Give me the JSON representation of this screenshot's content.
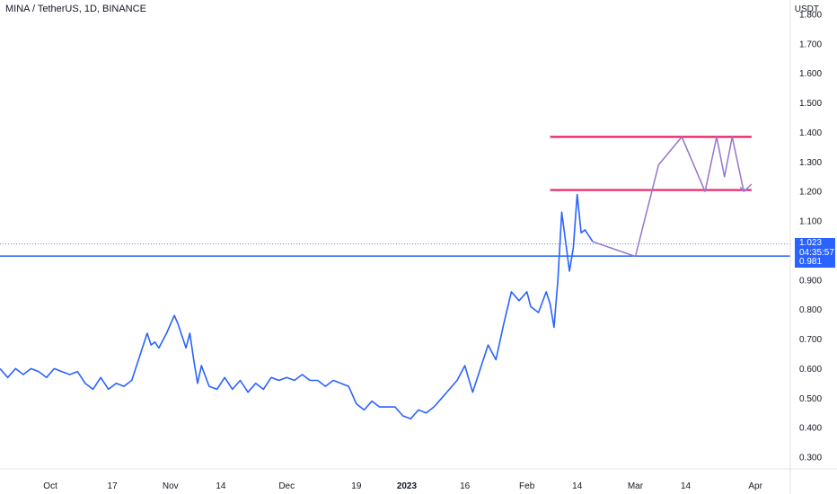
{
  "header": {
    "symbol_title": "MINA / TetherUS, 1D, BINANCE",
    "currency": "USDT"
  },
  "badges": {
    "last_price": "1.023",
    "countdown": "04:35:57",
    "level_price": "0.981"
  },
  "colors": {
    "price_line": "#2962ff",
    "level_line": "#2962ff",
    "range_lines": "#e91e63",
    "projection": "#9575cd",
    "badge_bg": "#2962ff"
  },
  "chart_data": {
    "type": "line",
    "ylim": [
      0.25,
      1.8
    ],
    "y_ticks": [
      0.3,
      0.4,
      0.5,
      0.6,
      0.7,
      0.8,
      0.9,
      1.0,
      1.1,
      1.2,
      1.3,
      1.4,
      1.5,
      1.6,
      1.7,
      1.8
    ],
    "y_tick_labels": [
      "0.300",
      "0.400",
      "0.500",
      "0.600",
      "0.700",
      "0.800",
      "0.900",
      "",
      "1.100",
      "1.200",
      "1.300",
      "1.400",
      "1.500",
      "1.600",
      "1.700",
      "1.800"
    ],
    "x_range": [
      "2022-09-18",
      "2023-04-10"
    ],
    "x_ticks": [
      {
        "date": "2022-10-01",
        "label": "Oct",
        "bold": false
      },
      {
        "date": "2022-10-17",
        "label": "17",
        "bold": false
      },
      {
        "date": "2022-11-01",
        "label": "Nov",
        "bold": false
      },
      {
        "date": "2022-11-14",
        "label": "14",
        "bold": false
      },
      {
        "date": "2022-12-01",
        "label": "Dec",
        "bold": false
      },
      {
        "date": "2022-12-19",
        "label": "19",
        "bold": false
      },
      {
        "date": "2023-01-01",
        "label": "2023",
        "bold": true
      },
      {
        "date": "2023-01-16",
        "label": "16",
        "bold": false
      },
      {
        "date": "2023-02-01",
        "label": "Feb",
        "bold": false
      },
      {
        "date": "2023-02-14",
        "label": "14",
        "bold": false
      },
      {
        "date": "2023-03-01",
        "label": "Mar",
        "bold": false
      },
      {
        "date": "2023-03-14",
        "label": "14",
        "bold": false
      },
      {
        "date": "2023-04-01",
        "label": "Apr",
        "bold": false
      }
    ],
    "series": [
      {
        "x": [
          "2022-09-18",
          "2022-09-20",
          "2022-09-22",
          "2022-09-24",
          "2022-09-26",
          "2022-09-28",
          "2022-09-30",
          "2022-10-02",
          "2022-10-04",
          "2022-10-06",
          "2022-10-08",
          "2022-10-10",
          "2022-10-12",
          "2022-10-14",
          "2022-10-16",
          "2022-10-18",
          "2022-10-20",
          "2022-10-22",
          "2022-10-24",
          "2022-10-26",
          "2022-10-27",
          "2022-10-28",
          "2022-10-29",
          "2022-10-31",
          "2022-11-02",
          "2022-11-03",
          "2022-11-05",
          "2022-11-06",
          "2022-11-07",
          "2022-11-08",
          "2022-11-09",
          "2022-11-11",
          "2022-11-13",
          "2022-11-15",
          "2022-11-17",
          "2022-11-19",
          "2022-11-21",
          "2022-11-23",
          "2022-11-25",
          "2022-11-27",
          "2022-11-29",
          "2022-12-01",
          "2022-12-03",
          "2022-12-05",
          "2022-12-07",
          "2022-12-09",
          "2022-12-11",
          "2022-12-13",
          "2022-12-15",
          "2022-12-17",
          "2022-12-19",
          "2022-12-21",
          "2022-12-23",
          "2022-12-25",
          "2022-12-27",
          "2022-12-29",
          "2022-12-31",
          "2023-01-02",
          "2023-01-04",
          "2023-01-06",
          "2023-01-08",
          "2023-01-10",
          "2023-01-12",
          "2023-01-14",
          "2023-01-16",
          "2023-01-18",
          "2023-01-20",
          "2023-01-22",
          "2023-01-24",
          "2023-01-26",
          "2023-01-28",
          "2023-01-30",
          "2023-02-01",
          "2023-02-02",
          "2023-02-04",
          "2023-02-06",
          "2023-02-07",
          "2023-02-08",
          "2023-02-09",
          "2023-02-10",
          "2023-02-11",
          "2023-02-12",
          "2023-02-13",
          "2023-02-14",
          "2023-02-15",
          "2023-02-16",
          "2023-02-17",
          "2023-02-18"
        ],
        "values": [
          0.6,
          0.57,
          0.6,
          0.58,
          0.6,
          0.59,
          0.57,
          0.6,
          0.59,
          0.58,
          0.59,
          0.55,
          0.53,
          0.57,
          0.53,
          0.55,
          0.54,
          0.56,
          0.64,
          0.72,
          0.68,
          0.69,
          0.67,
          0.72,
          0.78,
          0.75,
          0.67,
          0.72,
          0.63,
          0.55,
          0.61,
          0.54,
          0.53,
          0.57,
          0.53,
          0.56,
          0.52,
          0.55,
          0.53,
          0.57,
          0.56,
          0.57,
          0.56,
          0.58,
          0.56,
          0.56,
          0.54,
          0.56,
          0.55,
          0.54,
          0.48,
          0.46,
          0.49,
          0.47,
          0.47,
          0.47,
          0.44,
          0.43,
          0.46,
          0.45,
          0.47,
          0.5,
          0.53,
          0.56,
          0.61,
          0.52,
          0.6,
          0.68,
          0.63,
          0.75,
          0.86,
          0.83,
          0.86,
          0.81,
          0.79,
          0.86,
          0.82,
          0.74,
          0.9,
          1.13,
          1.03,
          0.93,
          1.01,
          1.19,
          1.06,
          1.07,
          1.05,
          1.03
        ]
      }
    ],
    "annotations": {
      "horizontal_level": 0.981,
      "last_price": 1.023,
      "range_lines": [
        {
          "y": 1.385,
          "x_start": "2023-02-07",
          "x_end": "2023-03-31"
        },
        {
          "y": 1.205,
          "x_start": "2023-02-07",
          "x_end": "2023-03-31"
        }
      ],
      "projection": {
        "x": [
          "2023-02-18",
          "2023-03-01",
          "2023-03-07",
          "2023-03-13",
          "2023-03-19",
          "2023-03-22",
          "2023-03-24",
          "2023-03-26",
          "2023-03-29",
          "2023-03-31"
        ],
        "values": [
          1.03,
          0.98,
          1.29,
          1.385,
          1.2,
          1.385,
          1.25,
          1.385,
          1.2,
          1.225
        ]
      }
    }
  }
}
